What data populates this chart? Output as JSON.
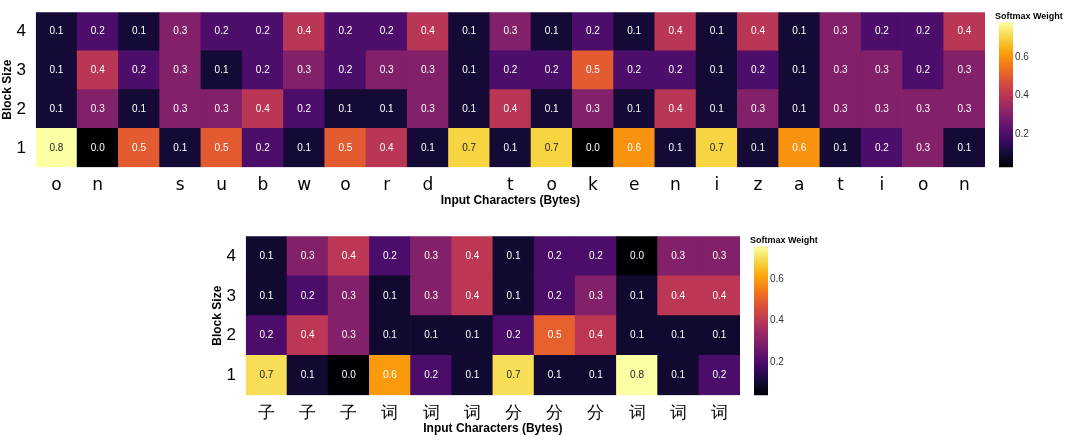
{
  "chart_data": [
    {
      "type": "heatmap",
      "xlabel": "Input Characters (Bytes)",
      "ylabel": "Block Size",
      "clabel": "Softmax Weight",
      "categories": [
        "o",
        "n",
        null,
        "s",
        "u",
        "b",
        "w",
        "o",
        "r",
        "d",
        null,
        "t",
        "o",
        "k",
        "e",
        "n",
        "i",
        "z",
        "a",
        "t",
        "i",
        "o",
        "n"
      ],
      "y_categories": [
        "4",
        "3",
        "2",
        "1"
      ],
      "cells": [
        [
          0.1,
          0.2,
          0.1,
          0.3,
          0.2,
          0.2,
          0.4,
          0.2,
          0.2,
          0.4,
          0.1,
          0.3,
          0.1,
          0.2,
          0.1,
          0.4,
          0.1,
          0.4,
          0.1,
          0.3,
          0.2,
          0.2,
          0.4
        ],
        [
          0.1,
          0.4,
          0.2,
          0.3,
          0.1,
          0.2,
          0.3,
          0.2,
          0.3,
          0.3,
          0.1,
          0.2,
          0.2,
          0.5,
          0.2,
          0.2,
          0.1,
          0.2,
          0.1,
          0.3,
          0.3,
          0.2,
          0.3
        ],
        [
          0.1,
          0.3,
          0.1,
          0.3,
          0.3,
          0.4,
          0.2,
          0.1,
          0.1,
          0.3,
          0.1,
          0.4,
          0.1,
          0.3,
          0.1,
          0.4,
          0.1,
          0.3,
          0.1,
          0.3,
          0.3,
          0.3,
          0.3
        ],
        [
          0.8,
          0.0,
          0.5,
          0.1,
          0.5,
          0.2,
          0.1,
          0.5,
          0.4,
          0.1,
          0.7,
          0.1,
          0.7,
          0.0,
          0.6,
          0.1,
          0.7,
          0.1,
          0.6,
          0.1,
          0.2,
          0.3,
          0.1
        ]
      ],
      "cell_labels": [
        [
          "0.1",
          "0.2",
          "0.1",
          "0.3",
          "0.2",
          "0.2",
          "0.4",
          "0.2",
          "0.2",
          "0.4",
          "0.1",
          "0.3",
          "0.1",
          "0.2",
          "0.1",
          "0.4",
          "0.1",
          "0.4",
          "0.1",
          "0.3",
          "0.2",
          "0.2",
          "0.4"
        ],
        [
          "0.1",
          "0.4",
          "0.2",
          "0.3",
          "0.1",
          "0.2",
          "0.3",
          "0.2",
          "0.3",
          "0.3",
          "0.1",
          "0.2",
          "0.2",
          "0.5",
          "0.2",
          "0.2",
          "0.1",
          "0.2",
          "0.1",
          "0.3",
          "0.3",
          "0.2",
          "0.3"
        ],
        [
          "0.1",
          "0.3",
          "0.1",
          "0.3",
          "0.3",
          "0.4",
          "0.2",
          "0.1",
          "0.1",
          "0.3",
          "0.1",
          "0.4",
          "0.1",
          "0.3",
          "0.1",
          "0.4",
          "0.1",
          "0.3",
          "0.1",
          "0.3",
          "0.3",
          "0.3",
          "0.3"
        ],
        [
          "0.8",
          "0.0",
          "0.5",
          "0.1",
          "0.5",
          "0.2",
          "0.1",
          "0.5",
          "0.4",
          "0.1",
          "0.7",
          "0.1",
          "0.7",
          "0.0",
          "0.6",
          "0.1",
          "0.7",
          "0.1",
          "0.6",
          "0.1",
          "0.2",
          "0.3",
          "0.1"
        ]
      ],
      "clim": [
        0.03,
        0.78
      ],
      "cticks": [
        0.2,
        0.4,
        0.6
      ],
      "data_labels": true
    },
    {
      "type": "heatmap",
      "xlabel": "Input Characters (Bytes)",
      "ylabel": "Block Size",
      "clabel": "Softmax Weight",
      "categories": [
        "子",
        "子",
        "子",
        "词",
        "词",
        "词",
        "分",
        "分",
        "分",
        "词",
        "词",
        "词"
      ],
      "y_categories": [
        "4",
        "3",
        "2",
        "1"
      ],
      "cells": [
        [
          0.1,
          0.3,
          0.4,
          0.2,
          0.3,
          0.4,
          0.1,
          0.2,
          0.2,
          0.0,
          0.3,
          0.3
        ],
        [
          0.1,
          0.2,
          0.3,
          0.1,
          0.3,
          0.4,
          0.1,
          0.2,
          0.3,
          0.1,
          0.4,
          0.4
        ],
        [
          0.2,
          0.4,
          0.3,
          0.1,
          0.1,
          0.1,
          0.2,
          0.5,
          0.4,
          0.1,
          0.1,
          0.1
        ],
        [
          0.7,
          0.1,
          0.0,
          0.6,
          0.2,
          0.1,
          0.7,
          0.1,
          0.1,
          0.8,
          0.1,
          0.2
        ]
      ],
      "cell_labels": [
        [
          "0.1",
          "0.3",
          "0.4",
          "0.2",
          "0.3",
          "0.4",
          "0.1",
          "0.2",
          "0.2",
          "0.0",
          "0.3",
          "0.3"
        ],
        [
          "0.1",
          "0.2",
          "0.3",
          "0.1",
          "0.3",
          "0.4",
          "0.1",
          "0.2",
          "0.3",
          "0.1",
          "0.4",
          "0.4"
        ],
        [
          "0.2",
          "0.4",
          "0.3",
          "0.1",
          "0.1",
          "0.1",
          "0.2",
          "0.5",
          "0.4",
          "0.1",
          "0.1",
          "0.1"
        ],
        [
          "0.7",
          "0.1",
          "0.0",
          "0.6",
          "0.2",
          "0.1",
          "0.7",
          "0.1",
          "0.1",
          "0.8",
          "0.1",
          "0.2"
        ]
      ],
      "clim": [
        0.04,
        0.76
      ],
      "cticks": [
        0.2,
        0.4,
        0.6
      ],
      "data_labels": true
    }
  ]
}
